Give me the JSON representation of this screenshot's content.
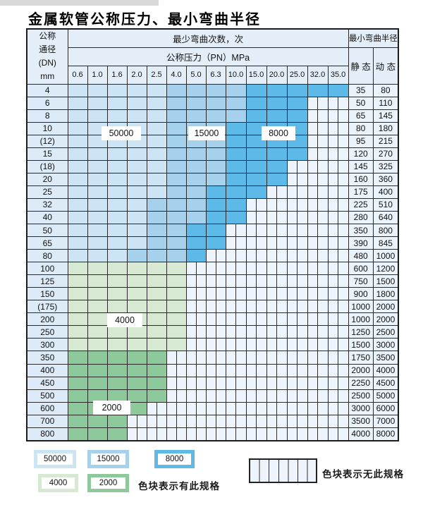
{
  "title": "金属软管公称压力、最小弯曲半径",
  "table": {
    "corner_header": [
      "公称",
      "通径",
      "(DN)",
      "mm"
    ],
    "bend_cycles_header": "最少弯曲次数，次",
    "pressure_header": "公称压力（PN）MPa",
    "pressure_columns": [
      "0.6",
      "1.0",
      "1.6",
      "2.0",
      "2.5",
      "4.0",
      "5.0",
      "6.3",
      "10.0",
      "15.0",
      "20.0",
      "25.0",
      "32.0",
      "35.0"
    ],
    "radius_header": "最小弯曲半径",
    "static_header": "静 态",
    "dynamic_header": "动 态",
    "overlay_labels": [
      "50000",
      "15000",
      "8000",
      "4000",
      "2000"
    ],
    "rows": [
      {
        "dn": "4",
        "cells": "LLLLLMMMMDDDDD",
        "static": "35",
        "dynamic": "80"
      },
      {
        "dn": "6",
        "cells": "LLLLLMMMMDDDXX",
        "static": "50",
        "dynamic": "110"
      },
      {
        "dn": "8",
        "cells": "LLLLLMMMMDDDXX",
        "static": "65",
        "dynamic": "145"
      },
      {
        "dn": "10",
        "cells": "LLLLLMMMDDDDXX",
        "static": "80",
        "dynamic": "180"
      },
      {
        "dn": "(12)",
        "cells": "LLLLLMMMDDDDXX",
        "static": "95",
        "dynamic": "215"
      },
      {
        "dn": "15",
        "cells": "LLLLLMMMDDDDXX",
        "static": "120",
        "dynamic": "270"
      },
      {
        "dn": "(18)",
        "cells": "LLLLLMMMDDDXXX",
        "static": "145",
        "dynamic": "325"
      },
      {
        "dn": "20",
        "cells": "LLLLLMMMDDDXXX",
        "static": "160",
        "dynamic": "360"
      },
      {
        "dn": "25",
        "cells": "LLLLLMMDDDXXXX",
        "static": "175",
        "dynamic": "400"
      },
      {
        "dn": "32",
        "cells": "LLLLMMMDDXXXXX",
        "static": "225",
        "dynamic": "510"
      },
      {
        "dn": "40",
        "cells": "LLLLMMMDDXXXXX",
        "static": "280",
        "dynamic": "640"
      },
      {
        "dn": "50",
        "cells": "LLLLMMDDXXXXXX",
        "static": "350",
        "dynamic": "800"
      },
      {
        "dn": "65",
        "cells": "LLLLMMDDXXXXXX",
        "static": "390",
        "dynamic": "845"
      },
      {
        "dn": "80",
        "cells": "LLLMMMDXXXXXXX",
        "static": "480",
        "dynamic": "1000"
      },
      {
        "dn": "100",
        "cells": "GGGGGGXXXXXXXX",
        "static": "600",
        "dynamic": "1200"
      },
      {
        "dn": "125",
        "cells": "GGGGGGXXXXXXXX",
        "static": "750",
        "dynamic": "1500"
      },
      {
        "dn": "150",
        "cells": "GGGGGGXXXXXXXX",
        "static": "900",
        "dynamic": "1800"
      },
      {
        "dn": "(175)",
        "cells": "GGGGGGXXXXXXXX",
        "static": "1000",
        "dynamic": "2000"
      },
      {
        "dn": "200",
        "cells": "GGGGGGXXXXXXXX",
        "static": "1000",
        "dynamic": "2000"
      },
      {
        "dn": "250",
        "cells": "GGGGGGXXXXXXXX",
        "static": "1250",
        "dynamic": "2500"
      },
      {
        "dn": "300",
        "cells": "GGGGGGXXXXXXXX",
        "static": "1500",
        "dynamic": "3000"
      },
      {
        "dn": "350",
        "cells": "gggggXXXXXXXXX",
        "static": "1750",
        "dynamic": "3500"
      },
      {
        "dn": "400",
        "cells": "gggggXXXXXXXXX",
        "static": "2000",
        "dynamic": "4000"
      },
      {
        "dn": "450",
        "cells": "gggggXXXXXXXXX",
        "static": "2250",
        "dynamic": "4500"
      },
      {
        "dn": "500",
        "cells": "gggggXXXXXXXXX",
        "static": "2500",
        "dynamic": "5000"
      },
      {
        "dn": "600",
        "cells": "ggggXXXXXXXXXX",
        "static": "3000",
        "dynamic": "6000"
      },
      {
        "dn": "700",
        "cells": "gggXXXXXXXXXXX",
        "static": "3500",
        "dynamic": "7000"
      },
      {
        "dn": "800",
        "cells": "gggXXXXXXXXXXX",
        "static": "4000",
        "dynamic": "8000"
      }
    ]
  },
  "legend": {
    "items": [
      {
        "label": "50000",
        "color_key": "L"
      },
      {
        "label": "15000",
        "color_key": "M"
      },
      {
        "label": "8000",
        "color_key": "D"
      },
      {
        "label": "4000",
        "color_key": "G"
      },
      {
        "label": "2000",
        "color_key": "g"
      }
    ],
    "has_spec_text": "色块表示有此规格",
    "no_spec_text": "色块表示无此规格"
  },
  "colors": {
    "L": "#cde4f5",
    "M": "#a5d1ed",
    "D": "#5db9e7",
    "G": "#d7e9d3",
    "g": "#8dc99b",
    "stripe_bg": "#eef4fb",
    "stripe_line": "#2e2e2e",
    "header_bg": "#e3eef8",
    "dn_col_bg": "#dcebf7",
    "value_col_bg": "#eaf2fa",
    "border": "#2a2a2a"
  }
}
